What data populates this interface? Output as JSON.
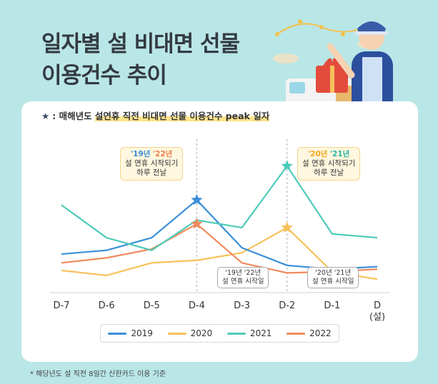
{
  "title": {
    "line1": "일자별 설 비대면 선물",
    "line2": "이용건수 추이"
  },
  "note": {
    "star": "★",
    "prefix": ": 매해년도 ",
    "highlight": "설연휴 직전 비대면 선물 이용건수 peak 일자"
  },
  "callouts": {
    "peak_left": {
      "y1": "'19년",
      "y2": "'22년",
      "line1": "설 연휴 시작되기",
      "line2": "하루 전날"
    },
    "peak_right": {
      "y1": "'20년",
      "y2": "'21년",
      "line1": "설 연휴 시작되기",
      "line2": "하루 전날"
    },
    "start_left": {
      "y1": "'19년",
      "y2": "'22년",
      "line1": "설 연휴 시작일"
    },
    "start_right": {
      "y1": "'20년",
      "y2": "'21년",
      "line1": "설 연휴 시작일"
    }
  },
  "footnote": "* 해당년도 설 직전 8일간 신한카드 이용 기준",
  "colors": {
    "2019": "#3a8fd8",
    "2020": "#f7c15a",
    "2021": "#4ecbb8",
    "2022": "#f08a5d",
    "background": "#b9e6e6"
  },
  "chart_data": {
    "type": "line",
    "categories": [
      "D-7",
      "D-6",
      "D-5",
      "D-4",
      "D-3",
      "D-2",
      "D-1",
      "D\n(설)"
    ],
    "x_tick_labels": [
      "D-7",
      "D-6",
      "D-5",
      "D-4",
      "D-3",
      "D-2",
      "D-1",
      "D",
      "(설)"
    ],
    "series": [
      {
        "name": "2019",
        "values": [
          25,
          28,
          38,
          68,
          30,
          16,
          13,
          15
        ],
        "peak_index": 3
      },
      {
        "name": "2020",
        "values": [
          12,
          8,
          18,
          20,
          26,
          46,
          11,
          5
        ],
        "peak_index": 5
      },
      {
        "name": "2021",
        "values": [
          64,
          38,
          28,
          52,
          46,
          95,
          41,
          38
        ],
        "peak_index": 5
      },
      {
        "name": "2022",
        "values": [
          18,
          22,
          29,
          49,
          18,
          10,
          11,
          13
        ],
        "peak_index": 3
      }
    ],
    "ylim": [
      0,
      105
    ],
    "y_axis_shown": false,
    "grid": false,
    "legend": "bottom",
    "peak_marker": "star",
    "vlines_at": [
      "D-4",
      "D-2"
    ]
  }
}
